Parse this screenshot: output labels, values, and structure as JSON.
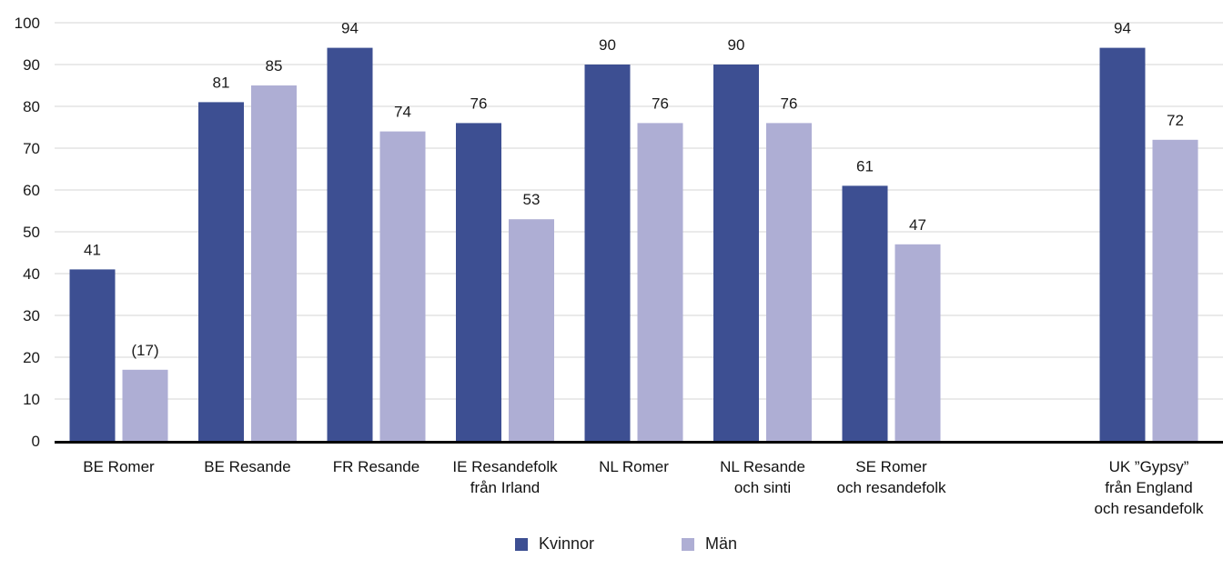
{
  "chart_data": {
    "type": "bar",
    "categories": [
      [
        "BE Romer"
      ],
      [
        "BE Resande"
      ],
      [
        "FR Resande"
      ],
      [
        "IE Resandefolk",
        "från Irland"
      ],
      [
        "NL Romer"
      ],
      [
        "NL Resande",
        "och sinti"
      ],
      [
        "SE Romer",
        "och resandefolk"
      ],
      [],
      [
        "UK ”Gypsy”",
        "från England",
        "och resandefolk"
      ]
    ],
    "series": [
      {
        "name": "Kvinnor",
        "color": "#3d4f92",
        "values": [
          41,
          81,
          94,
          76,
          90,
          90,
          61,
          null,
          94
        ],
        "labels": [
          "41",
          "81",
          "94",
          "76",
          "90",
          "90",
          "61",
          "",
          "94"
        ]
      },
      {
        "name": "Män",
        "color": "#aeaed4",
        "values": [
          17,
          85,
          74,
          53,
          76,
          76,
          47,
          null,
          72
        ],
        "labels": [
          "(17)",
          "85",
          "74",
          "53",
          "76",
          "76",
          "47",
          "",
          "72"
        ]
      }
    ],
    "ylim": [
      0,
      100
    ],
    "yticks": [
      0,
      10,
      20,
      30,
      40,
      50,
      60,
      70,
      80,
      90,
      100
    ],
    "grid": true,
    "legend_position": "bottom-center"
  }
}
